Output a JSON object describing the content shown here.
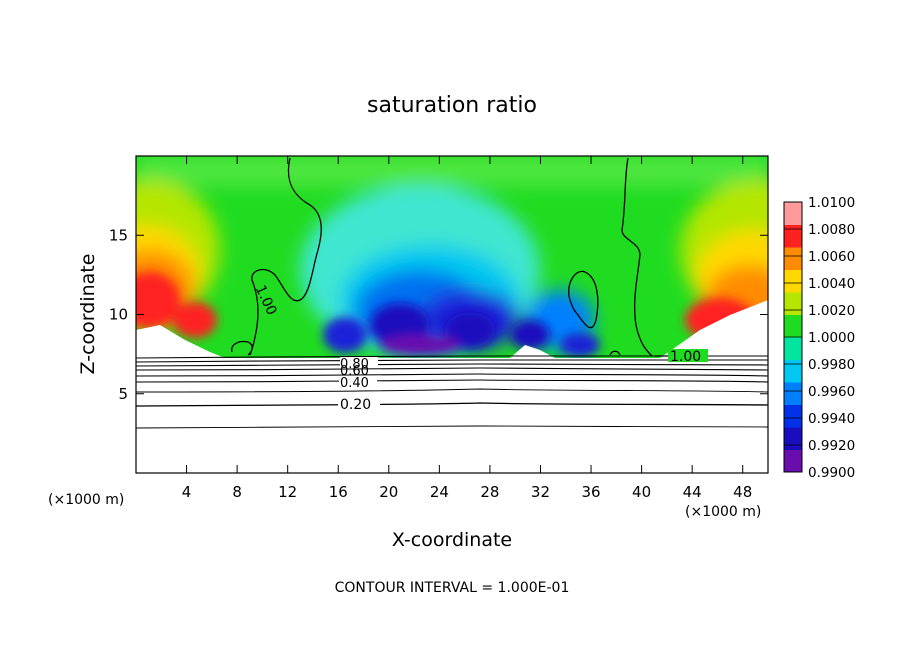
{
  "chart_data": {
    "type": "heatmap",
    "title": "saturation ratio",
    "xlabel": "X-coordinate",
    "ylabel": "Z-coordinate",
    "x_unit": "(×1000 m)",
    "footnote": "CONTOUR INTERVAL = 1.000E-01",
    "xlim": [
      0,
      50
    ],
    "ylim": [
      0,
      20
    ],
    "x_ticks": [
      4,
      8,
      12,
      16,
      20,
      24,
      28,
      32,
      36,
      40,
      44,
      48
    ],
    "y_ticks": [
      5,
      10,
      15
    ],
    "colorbar": {
      "min": 0.99,
      "max": 1.01,
      "labels": [
        "1.0100",
        "1.0080",
        "1.0060",
        "1.0040",
        "1.0020",
        "1.0000",
        "0.9980",
        "0.9960",
        "0.9940",
        "0.9920",
        "0.9900"
      ],
      "colors": [
        "#6a0dad",
        "#1a0dbe",
        "#0030e8",
        "#0080ff",
        "#00c8f0",
        "#00e6a0",
        "#20dc20",
        "#b4e600",
        "#ffd800",
        "#ff8c00",
        "#ff2020",
        "#ff9a9a"
      ]
    },
    "contour_labels": [
      "1.00",
      "1.00",
      "0.80",
      "0.60",
      "0.40",
      "0.20"
    ],
    "fields": {
      "surface_height_km": 7.2,
      "note_regions": [
        "moist high (red) near x=0-6 and x=43-50 at z 9-13",
        "dry minimum (blue/purple) at x 17-36 above z 7.5"
      ]
    }
  }
}
